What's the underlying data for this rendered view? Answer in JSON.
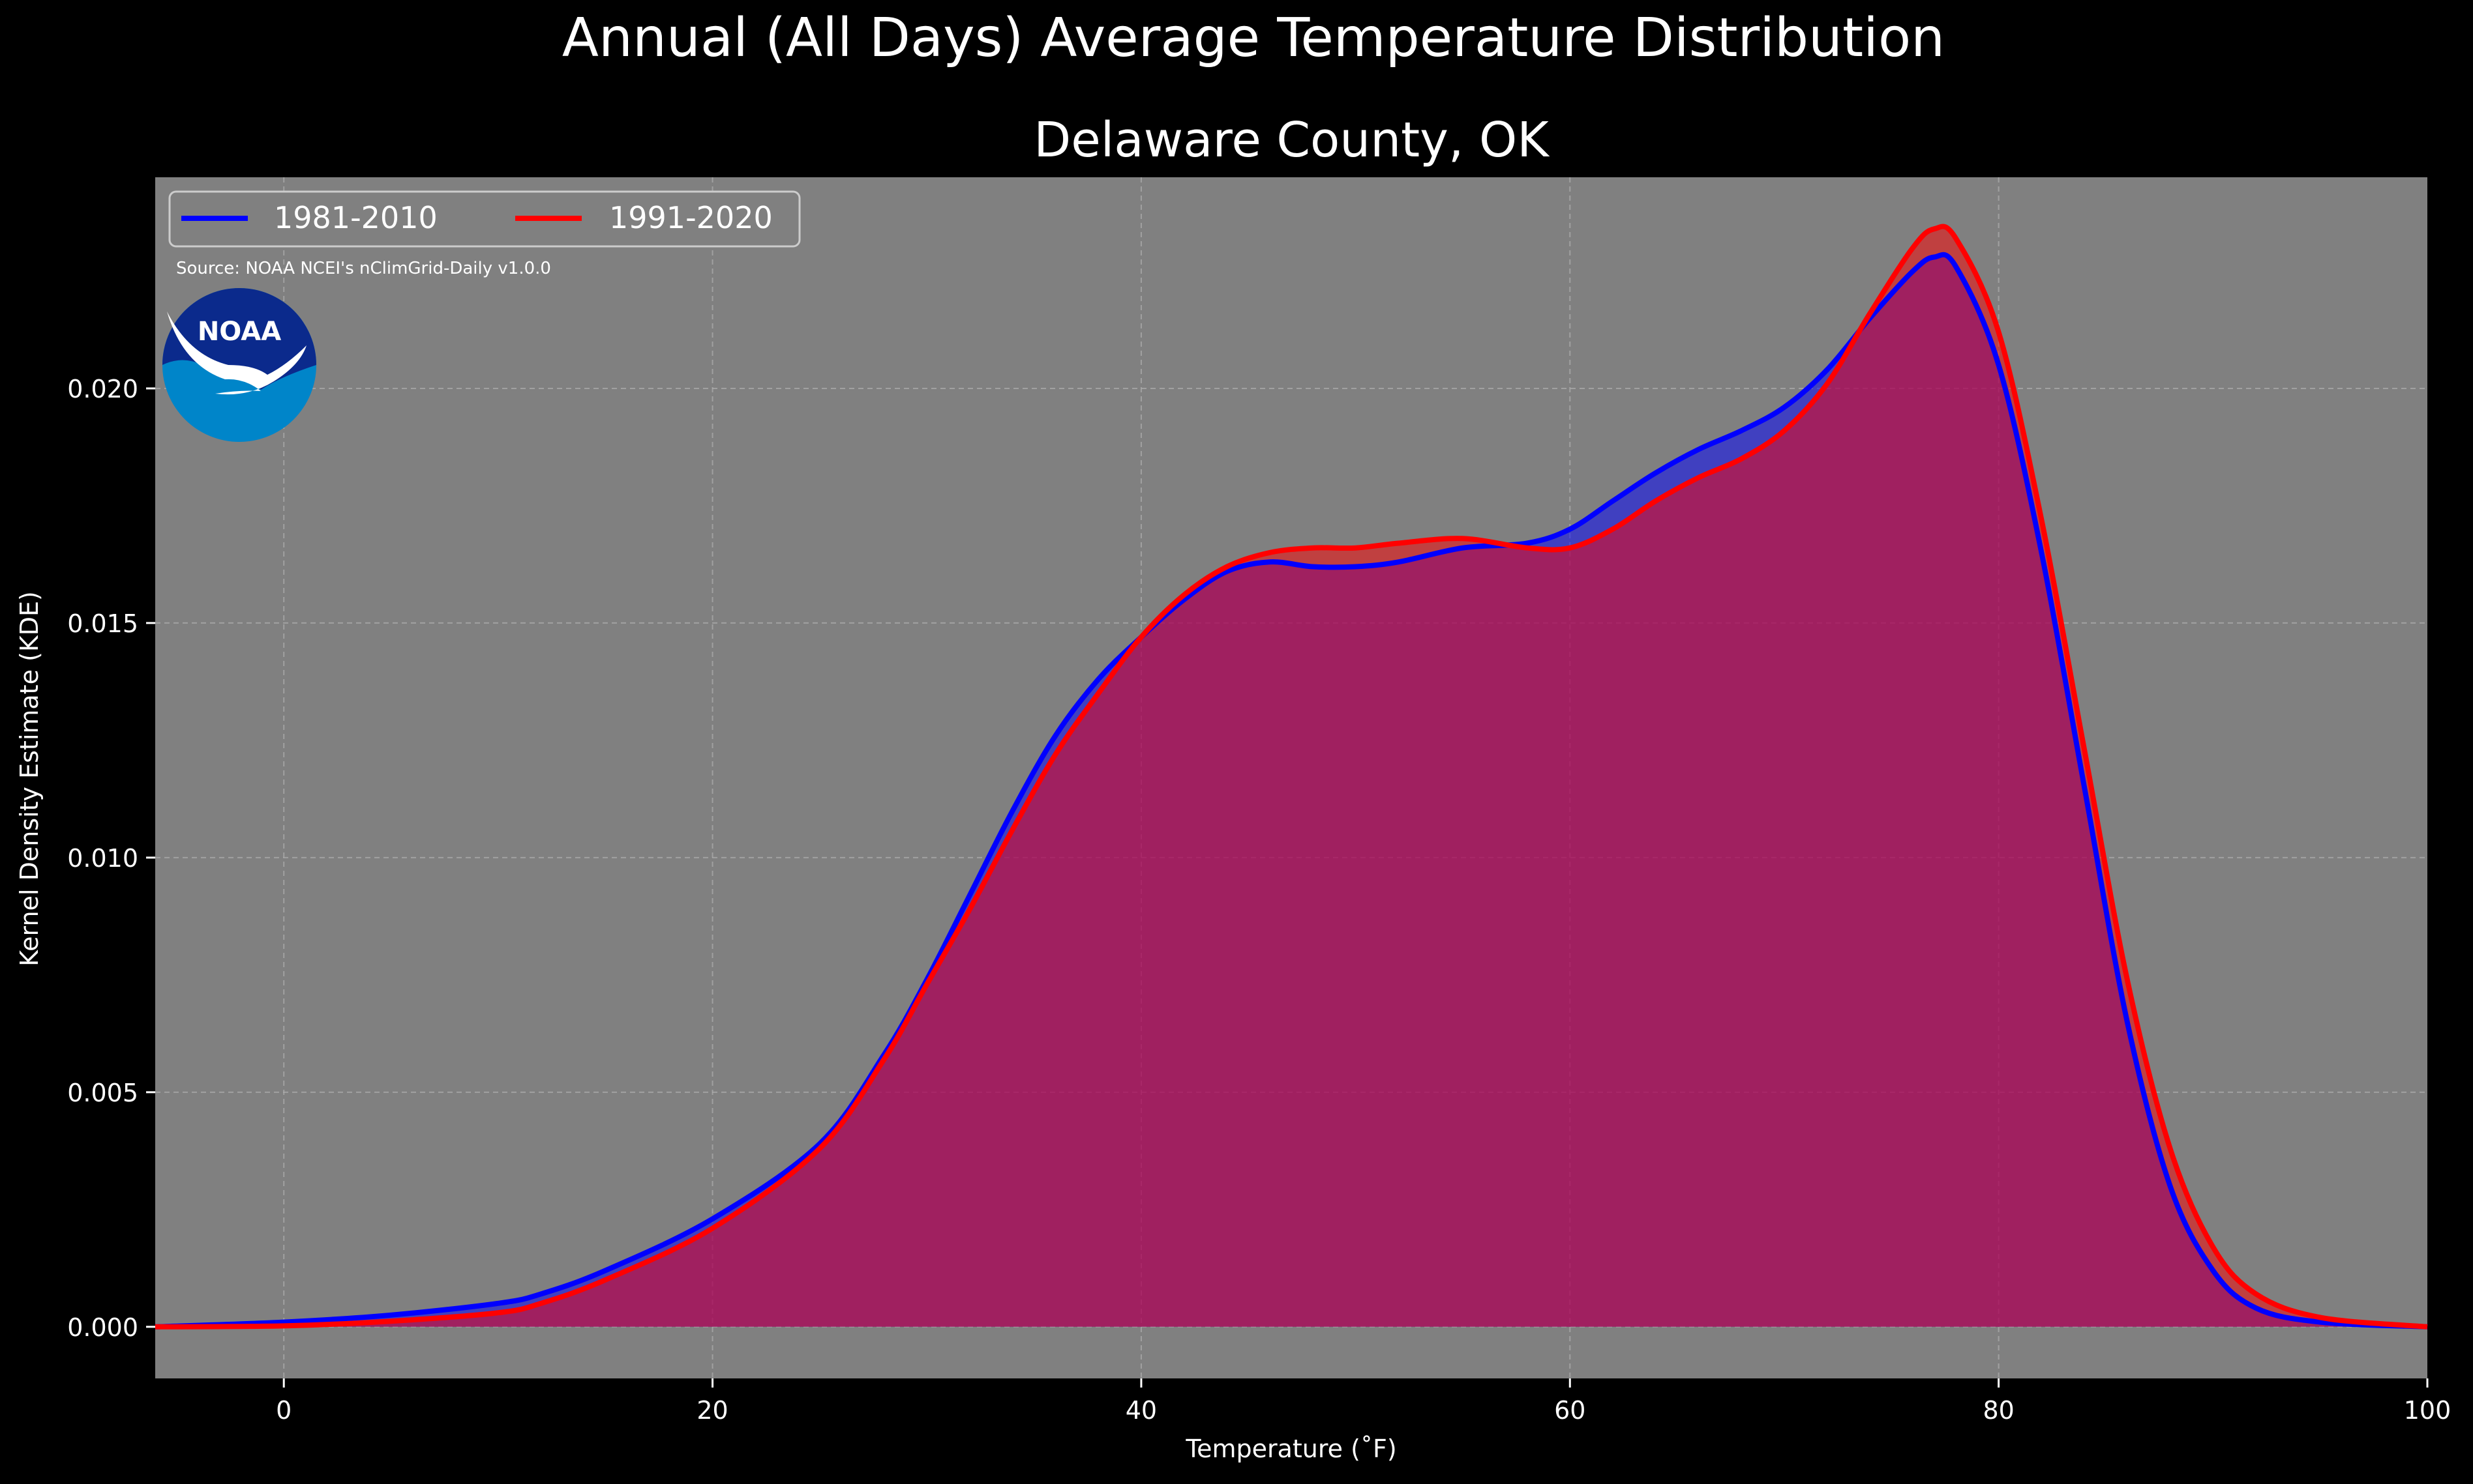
{
  "chart_data": {
    "type": "area",
    "title": "Annual (All Days) Average Temperature Distribution",
    "subtitle": "Delaware County, OK",
    "xlabel": "Temperature (˚F)",
    "ylabel": "Kernel Density Estimate (KDE)",
    "xlim": [
      -6,
      100
    ],
    "ylim": [
      -0.0011,
      0.0245
    ],
    "xticks": [
      0,
      20,
      40,
      60,
      80,
      100
    ],
    "yticks": [
      0.0,
      0.005,
      0.01,
      0.015,
      0.02
    ],
    "grid": true,
    "legend_position": "top-left",
    "source": "Source: NOAA NCEI's nClimGrid-Daily v1.0.0",
    "logo_text": "NOAA",
    "colors": {
      "figure_bg": "#000000",
      "axes_bg": "#808080",
      "series_1": "#0000ff",
      "series_2": "#ff0000",
      "overlap": "#9d1e5a",
      "text": "#ffffff"
    },
    "series": [
      {
        "name": "1981-2010",
        "x": [
          -6,
          0,
          5,
          10,
          12,
          15,
          20,
          25,
          28,
          30,
          32,
          34,
          36,
          38,
          40,
          42,
          44,
          46,
          48,
          50,
          52,
          55,
          58,
          60,
          62,
          64,
          66,
          68,
          70,
          72,
          74,
          76,
          77,
          78,
          80,
          82,
          84,
          86,
          88,
          90,
          92,
          95,
          100
        ],
        "y": [
          0.0,
          0.0001,
          0.00025,
          0.0005,
          0.0007,
          0.0012,
          0.0023,
          0.0039,
          0.0058,
          0.0074,
          0.0092,
          0.011,
          0.0126,
          0.0138,
          0.0147,
          0.0155,
          0.0161,
          0.0163,
          0.0162,
          0.0162,
          0.0163,
          0.0166,
          0.0167,
          0.017,
          0.0176,
          0.0182,
          0.0187,
          0.0191,
          0.0196,
          0.0204,
          0.0215,
          0.0225,
          0.0228,
          0.0226,
          0.0205,
          0.0165,
          0.0115,
          0.0065,
          0.003,
          0.0012,
          0.0004,
          0.0001,
          0.0
        ]
      },
      {
        "name": "1991-2020",
        "x": [
          -6,
          0,
          5,
          10,
          12,
          15,
          20,
          25,
          28,
          30,
          32,
          34,
          36,
          38,
          40,
          42,
          44,
          46,
          48,
          50,
          52,
          55,
          58,
          60,
          62,
          64,
          66,
          68,
          70,
          72,
          74,
          76,
          77,
          78,
          80,
          82,
          84,
          86,
          88,
          90,
          92,
          95,
          100
        ],
        "y": [
          0.0,
          2e-05,
          0.00012,
          0.0003,
          0.0005,
          0.001,
          0.0021,
          0.0038,
          0.0057,
          0.0073,
          0.0089,
          0.0106,
          0.0122,
          0.0135,
          0.0147,
          0.0156,
          0.0162,
          0.0165,
          0.0166,
          0.0166,
          0.0167,
          0.0168,
          0.0166,
          0.0166,
          0.017,
          0.0176,
          0.0181,
          0.0185,
          0.0191,
          0.0201,
          0.0216,
          0.023,
          0.0234,
          0.0232,
          0.0212,
          0.0172,
          0.0123,
          0.0074,
          0.0038,
          0.0017,
          0.0007,
          0.0002,
          0.0
        ]
      }
    ]
  }
}
